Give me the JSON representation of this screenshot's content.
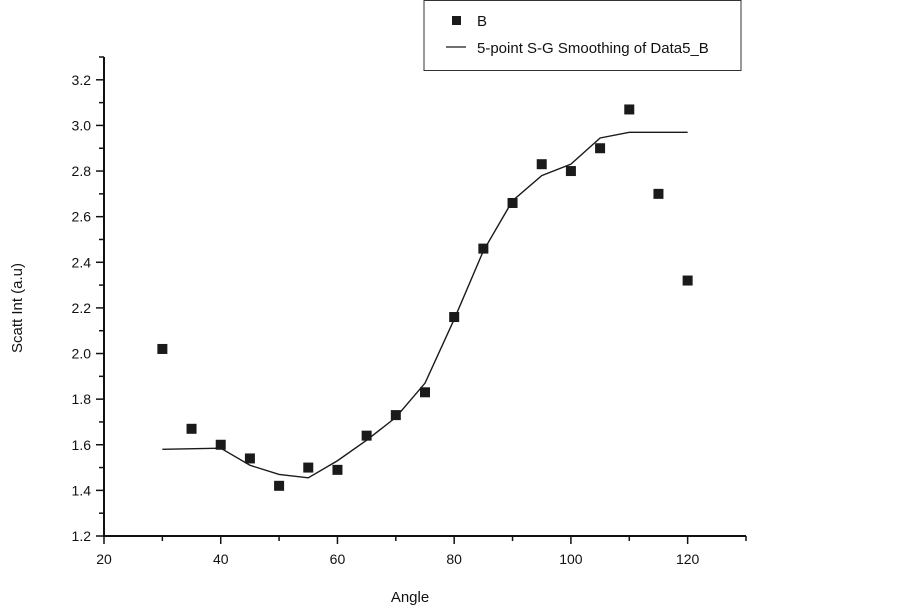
{
  "chart_data": {
    "type": "scatter",
    "title": "",
    "xlabel": "Angle",
    "ylabel": "Scatt Int (a.u)",
    "xlim": [
      20,
      130
    ],
    "ylim": [
      1.2,
      3.3
    ],
    "xticks": [
      "20",
      "40",
      "60",
      "80",
      "100",
      "120"
    ],
    "yticks": [
      "1.2",
      "1.4",
      "1.6",
      "1.8",
      "2.0",
      "2.2",
      "2.4",
      "2.6",
      "2.8",
      "3.0",
      "3.2"
    ],
    "grid": false,
    "legend_position": "top-right",
    "series": [
      {
        "name": "B",
        "kind": "scatter",
        "marker": "square",
        "color": "#1a1a1a",
        "x": [
          30,
          35,
          40,
          45,
          50,
          55,
          60,
          65,
          70,
          75,
          80,
          85,
          90,
          95,
          100,
          105,
          110,
          115,
          120
        ],
        "y": [
          2.02,
          1.67,
          1.6,
          1.54,
          1.42,
          1.5,
          1.49,
          1.64,
          1.73,
          1.83,
          2.16,
          2.46,
          2.66,
          2.83,
          2.8,
          2.9,
          3.07,
          2.7,
          2.32
        ]
      },
      {
        "name": "5-point S-G Smoothing of Data5_B",
        "kind": "line",
        "color": "#1a1a1a",
        "x": [
          30,
          40,
          45,
          50,
          55,
          60,
          65,
          70,
          75,
          80,
          85,
          90,
          95,
          100,
          105,
          110,
          120
        ],
        "y": [
          1.58,
          1.585,
          1.51,
          1.47,
          1.455,
          1.53,
          1.62,
          1.72,
          1.87,
          2.15,
          2.45,
          2.67,
          2.78,
          2.83,
          2.945,
          2.97,
          2.97
        ]
      }
    ]
  }
}
